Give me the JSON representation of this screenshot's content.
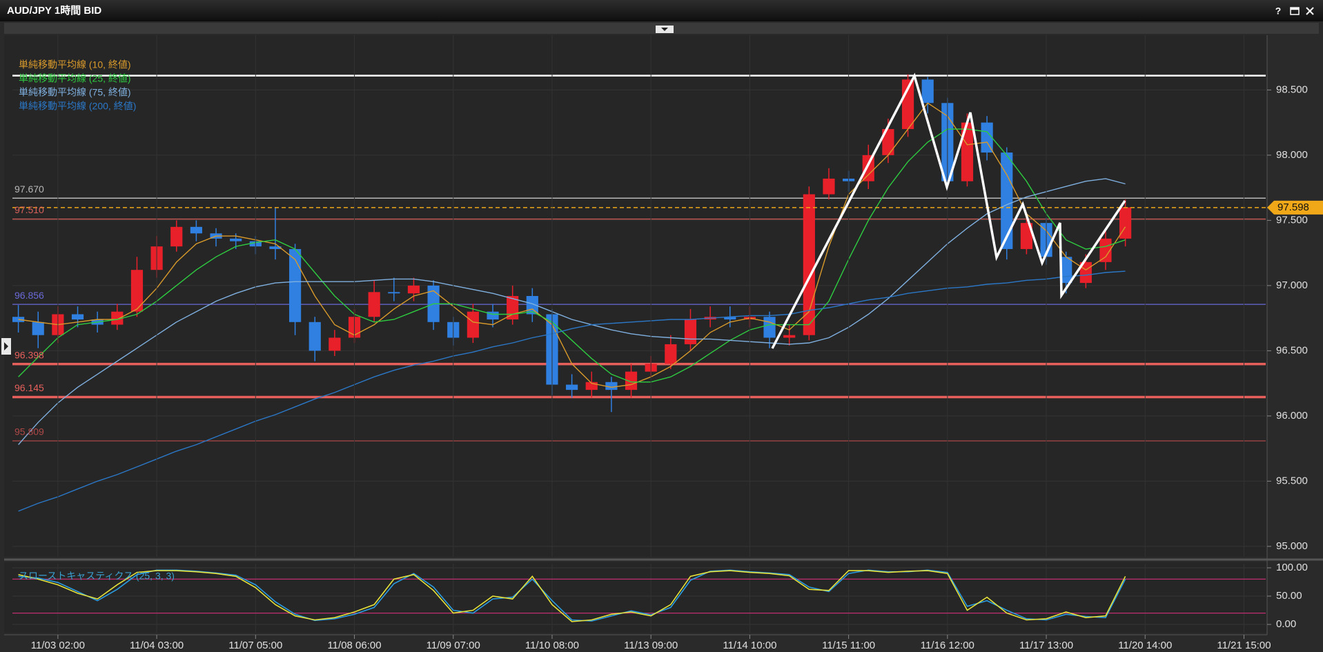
{
  "window": {
    "help_button": "?"
  },
  "chart_data": [
    {
      "type": "candlestick",
      "title": "AUD/JPY 1時間 BID",
      "xlim": [
        -0.3,
        63.1
      ],
      "ylim": [
        94.92,
        98.92
      ],
      "yticks": [
        {
          "value": 95,
          "label": "95.000"
        },
        {
          "value": 95.5,
          "label": "95.500"
        },
        {
          "value": 96,
          "label": "96.000"
        },
        {
          "value": 96.5,
          "label": "96.500"
        },
        {
          "value": 97,
          "label": "97.000"
        },
        {
          "value": 97.5,
          "label": "97.500"
        },
        {
          "value": 98,
          "label": "98.000"
        },
        {
          "value": 98.5,
          "label": "98.500"
        }
      ],
      "grid": true,
      "up_color": "#e8202a",
      "down_color": "#2f80e0",
      "open": [
        96.76,
        96.72,
        96.62,
        96.78,
        96.74,
        96.7,
        96.8,
        97.12,
        97.3,
        97.45,
        97.4,
        97.36,
        97.34,
        97.3,
        97.28,
        96.72,
        96.5,
        96.6,
        96.76,
        96.95,
        96.94,
        97.0,
        96.72,
        96.6,
        96.8,
        96.74,
        96.92,
        96.78,
        96.24,
        96.2,
        96.26,
        96.2,
        96.34,
        96.4,
        96.55,
        96.74,
        96.76,
        96.74,
        96.76,
        96.6,
        96.62,
        97.7,
        97.82,
        97.8,
        98.0,
        98.2,
        98.58,
        98.4,
        97.8,
        98.25,
        98.02,
        97.28,
        97.48,
        97.22,
        97.02,
        97.18,
        97.36
      ],
      "high": [
        96.85,
        96.8,
        96.84,
        96.84,
        96.8,
        96.86,
        97.22,
        97.38,
        97.5,
        97.5,
        97.44,
        97.4,
        97.38,
        97.6,
        97.32,
        96.76,
        96.66,
        96.82,
        97.04,
        97.06,
        97.06,
        97.04,
        96.76,
        96.86,
        96.86,
        97.0,
        96.98,
        96.82,
        96.32,
        96.34,
        96.3,
        96.4,
        96.46,
        96.62,
        96.82,
        96.84,
        96.84,
        96.84,
        96.8,
        96.7,
        97.76,
        97.9,
        97.88,
        98.08,
        98.28,
        98.62,
        98.6,
        98.44,
        98.32,
        98.3,
        98.06,
        97.56,
        97.52,
        97.26,
        97.24,
        97.42,
        97.66
      ],
      "low": [
        96.64,
        96.52,
        96.56,
        96.68,
        96.64,
        96.66,
        96.76,
        97.06,
        97.26,
        97.34,
        97.3,
        97.28,
        97.24,
        97.2,
        96.62,
        96.42,
        96.46,
        96.56,
        96.72,
        96.88,
        96.88,
        96.66,
        96.54,
        96.56,
        96.68,
        96.7,
        96.72,
        96.16,
        96.14,
        96.14,
        96.03,
        96.14,
        96.3,
        96.36,
        96.5,
        96.68,
        96.68,
        96.68,
        96.52,
        96.54,
        96.58,
        97.66,
        97.72,
        97.74,
        97.94,
        98.14,
        98.32,
        97.74,
        97.76,
        97.96,
        97.2,
        97.24,
        97.16,
        96.94,
        96.98,
        97.12,
        97.3
      ],
      "close": [
        96.72,
        96.62,
        96.78,
        96.74,
        96.7,
        96.8,
        97.12,
        97.3,
        97.45,
        97.4,
        97.36,
        97.34,
        97.3,
        97.28,
        96.72,
        96.5,
        96.6,
        96.76,
        96.95,
        96.94,
        97.0,
        96.72,
        96.6,
        96.8,
        96.74,
        96.92,
        96.78,
        96.24,
        96.2,
        96.26,
        96.2,
        96.34,
        96.4,
        96.55,
        96.74,
        96.76,
        96.74,
        96.76,
        96.6,
        96.62,
        97.7,
        97.82,
        97.8,
        98.0,
        98.2,
        98.58,
        98.4,
        97.8,
        98.25,
        98.02,
        97.28,
        97.48,
        97.22,
        97.02,
        97.18,
        97.36,
        97.6
      ],
      "series": [
        {
          "name": "単純移動平均線 (10, 終値)",
          "color": "#d99a2b",
          "values": [
            96.74,
            96.72,
            96.7,
            96.72,
            96.74,
            96.74,
            96.82,
            96.98,
            97.18,
            97.32,
            97.38,
            97.38,
            97.35,
            97.32,
            97.2,
            96.92,
            96.7,
            96.62,
            96.7,
            96.82,
            96.92,
            96.96,
            96.84,
            96.72,
            96.7,
            96.78,
            96.82,
            96.7,
            96.4,
            96.25,
            96.22,
            96.24,
            96.3,
            96.38,
            96.5,
            96.64,
            96.72,
            96.75,
            96.72,
            96.66,
            96.8,
            97.3,
            97.7,
            97.85,
            98.0,
            98.2,
            98.4,
            98.3,
            98.08,
            98.1,
            97.85,
            97.55,
            97.42,
            97.22,
            97.12,
            97.22,
            97.45
          ]
        },
        {
          "name": "単純移動平均線 (25, 終値)",
          "color": "#2ecc40",
          "values": [
            96.3,
            96.45,
            96.6,
            96.7,
            96.72,
            96.74,
            96.78,
            96.88,
            97.0,
            97.12,
            97.22,
            97.3,
            97.33,
            97.35,
            97.28,
            97.1,
            96.92,
            96.78,
            96.72,
            96.74,
            96.8,
            96.86,
            96.86,
            96.82,
            96.78,
            96.78,
            96.8,
            96.72,
            96.58,
            96.44,
            96.32,
            96.26,
            96.26,
            96.3,
            96.38,
            96.48,
            96.58,
            96.66,
            96.7,
            96.7,
            96.7,
            96.88,
            97.2,
            97.5,
            97.75,
            97.95,
            98.1,
            98.2,
            98.2,
            98.18,
            98.0,
            97.8,
            97.55,
            97.35,
            97.28,
            97.3,
            97.35
          ]
        },
        {
          "name": "単純移動平均線 (75, 終値)",
          "color": "#7fb0e0",
          "values": [
            95.78,
            95.95,
            96.1,
            96.22,
            96.32,
            96.42,
            96.52,
            96.62,
            96.72,
            96.8,
            96.88,
            96.94,
            96.99,
            97.02,
            97.03,
            97.03,
            97.03,
            97.03,
            97.04,
            97.05,
            97.05,
            97.03,
            97.0,
            96.97,
            96.94,
            96.9,
            96.86,
            96.8,
            96.74,
            96.7,
            96.66,
            96.63,
            96.61,
            96.6,
            96.59,
            96.59,
            96.58,
            96.57,
            96.56,
            96.55,
            96.56,
            96.6,
            96.68,
            96.78,
            96.9,
            97.04,
            97.18,
            97.32,
            97.44,
            97.55,
            97.62,
            97.68,
            97.72,
            97.76,
            97.8,
            97.82,
            97.78
          ]
        },
        {
          "name": "単純移動平均線 (200, 終値)",
          "color": "#2b78c8",
          "values": [
            95.27,
            95.33,
            95.38,
            95.44,
            95.5,
            95.55,
            95.61,
            95.67,
            95.73,
            95.78,
            95.84,
            95.9,
            95.96,
            96.01,
            96.07,
            96.13,
            96.18,
            96.24,
            96.3,
            96.35,
            96.39,
            96.42,
            96.46,
            96.49,
            96.53,
            96.56,
            96.6,
            96.63,
            96.67,
            96.7,
            96.71,
            96.72,
            96.73,
            96.74,
            96.74,
            96.75,
            96.76,
            96.77,
            96.77,
            96.78,
            96.81,
            96.83,
            96.86,
            96.89,
            96.91,
            96.94,
            96.96,
            96.98,
            96.99,
            97.01,
            97.02,
            97.04,
            97.05,
            97.07,
            97.08,
            97.1,
            97.11
          ]
        }
      ],
      "levels": [
        {
          "value": 98.61,
          "color": "#ffffff",
          "width": 2.5
        },
        {
          "value": 97.67,
          "label": "97.670",
          "color": "#b8b8b8",
          "width": 1.5
        },
        {
          "value": 97.51,
          "label": "97.510",
          "color": "#d9605a",
          "width": 1.2
        },
        {
          "value": 96.856,
          "label": "96.856",
          "color": "#6a6ad8",
          "width": 1.2
        },
        {
          "value": 96.398,
          "label": "96.398",
          "color": "#e8605c",
          "width": 3.5
        },
        {
          "value": 96.145,
          "label": "96.145",
          "color": "#e8605c",
          "width": 3.5
        },
        {
          "value": 95.809,
          "label": "95.809",
          "color": "#b04848",
          "width": 1.2
        }
      ],
      "current_price": {
        "value": 97.598,
        "color": "#f0a818"
      }
    },
    {
      "type": "line",
      "title": "スローストキャスティクス (25, 3, 3)",
      "xlim": [
        -0.3,
        63.1
      ],
      "ylim": [
        -14.6,
        107.3
      ],
      "yticks": [
        {
          "value": 0,
          "label": "0.00"
        },
        {
          "value": 50,
          "label": "50.00"
        },
        {
          "value": 100,
          "label": "100.00"
        }
      ],
      "xticks": [
        {
          "value": 2,
          "label": "11/03 02:00"
        },
        {
          "value": 7,
          "label": "11/04 03:00"
        },
        {
          "value": 12,
          "label": "11/07 05:00"
        },
        {
          "value": 17,
          "label": "11/08 06:00"
        },
        {
          "value": 22,
          "label": "11/09 07:00"
        },
        {
          "value": 27,
          "label": "11/10 08:00"
        },
        {
          "value": 32,
          "label": "11/13 09:00"
        },
        {
          "value": 37,
          "label": "11/14 10:00"
        },
        {
          "value": 42,
          "label": "11/15 11:00"
        },
        {
          "value": 47,
          "label": "11/16 12:00"
        },
        {
          "value": 52,
          "label": "11/17 13:00"
        },
        {
          "value": 57,
          "label": "11/20 14:00"
        },
        {
          "value": 62,
          "label": "11/21 15:00"
        }
      ],
      "grid": true,
      "series": [
        {
          "color": "#2b9be0",
          "values": [
            85,
            82,
            74,
            58,
            42,
            62,
            88,
            96,
            96,
            94,
            91,
            87,
            70,
            40,
            18,
            7,
            10,
            18,
            30,
            72,
            90,
            66,
            25,
            20,
            45,
            48,
            80,
            42,
            8,
            6,
            15,
            24,
            17,
            30,
            78,
            94,
            96,
            93,
            91,
            88,
            66,
            58,
            90,
            96,
            93,
            93,
            96,
            92,
            32,
            42,
            25,
            10,
            8,
            18,
            14,
            12,
            80
          ]
        },
        {
          "color": "#e6e23a",
          "values": [
            88,
            80,
            70,
            55,
            45,
            70,
            92,
            95,
            95,
            93,
            90,
            85,
            65,
            35,
            15,
            8,
            12,
            22,
            35,
            80,
            88,
            60,
            20,
            25,
            50,
            45,
            85,
            35,
            5,
            8,
            18,
            22,
            15,
            35,
            85,
            93,
            95,
            92,
            90,
            86,
            62,
            60,
            95,
            95,
            92,
            94,
            95,
            90,
            25,
            48,
            20,
            8,
            10,
            22,
            12,
            15,
            85
          ]
        }
      ],
      "levels": [
        {
          "value": 80,
          "color": "#c03070",
          "width": 1.2
        },
        {
          "value": 20,
          "color": "#c03070",
          "width": 1.2
        }
      ]
    }
  ]
}
